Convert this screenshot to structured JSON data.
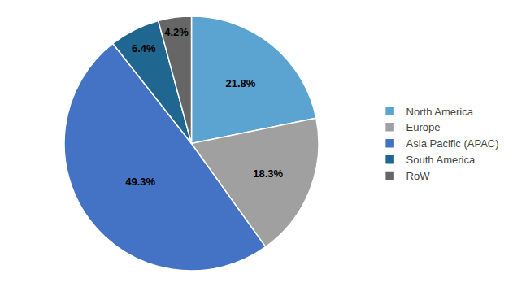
{
  "chart_data": {
    "type": "pie",
    "categories": [
      "North America",
      "Europe",
      "Asia Pacific (APAC)",
      "South America",
      "RoW"
    ],
    "values": [
      21.8,
      18.3,
      49.3,
      6.4,
      4.2
    ],
    "value_labels": [
      "21.8%",
      "18.3%",
      "49.3%",
      "6.4%",
      "4.2%"
    ],
    "colors": [
      "#5ba3d0",
      "#a0a0a0",
      "#4472c4",
      "#1f6690",
      "#666666"
    ],
    "data_labels": true,
    "legend": "right"
  }
}
